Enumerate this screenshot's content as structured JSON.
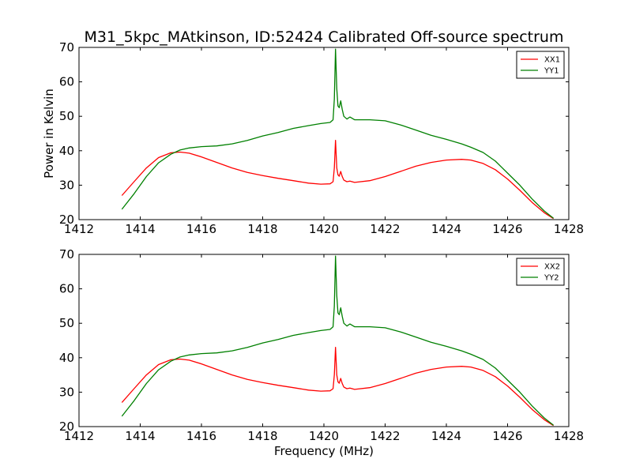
{
  "title": "M31_5kpc_MAtkinson, ID:52424 Calibrated Off-source spectrum",
  "colors": {
    "XX": "#ff0000",
    "YY": "#008000"
  },
  "chart_data": [
    {
      "type": "line",
      "ylabel": "Power in Kelvin",
      "xlabel": "",
      "xlim": [
        1412,
        1428
      ],
      "ylim": [
        20,
        70
      ],
      "xticks": [
        "1412",
        "1414",
        "1416",
        "1418",
        "1420",
        "1422",
        "1424",
        "1426",
        "1428"
      ],
      "yticks": [
        "20",
        "30",
        "40",
        "50",
        "60",
        "70"
      ],
      "legend_position": "top-right",
      "series": [
        {
          "name": "XX1",
          "color": "#ff0000",
          "x": [
            1413.4,
            1413.8,
            1414.2,
            1414.6,
            1415.0,
            1415.3,
            1415.6,
            1416.0,
            1416.5,
            1417.0,
            1417.5,
            1418.0,
            1418.5,
            1419.0,
            1419.5,
            1419.9,
            1420.2,
            1420.3,
            1420.34,
            1420.38,
            1420.42,
            1420.46,
            1420.5,
            1420.55,
            1420.6,
            1420.65,
            1420.75,
            1420.85,
            1421.0,
            1421.5,
            1422.0,
            1422.5,
            1423.0,
            1423.5,
            1424.0,
            1424.5,
            1424.8,
            1425.2,
            1425.6,
            1426.0,
            1426.4,
            1426.8,
            1427.2,
            1427.5
          ],
          "values": [
            27.0,
            31.0,
            35.0,
            38.0,
            39.4,
            39.6,
            39.3,
            38.2,
            36.6,
            35.0,
            33.7,
            32.8,
            32.0,
            31.3,
            30.6,
            30.3,
            30.4,
            31.0,
            35.0,
            43.0,
            35.0,
            33.0,
            32.6,
            34.0,
            32.5,
            31.5,
            31.0,
            31.2,
            30.8,
            31.3,
            32.5,
            34.0,
            35.5,
            36.6,
            37.3,
            37.5,
            37.3,
            36.3,
            34.5,
            31.8,
            28.5,
            25.0,
            22.0,
            20.3
          ]
        },
        {
          "name": "YY1",
          "color": "#008000",
          "x": [
            1413.4,
            1413.8,
            1414.2,
            1414.6,
            1415.0,
            1415.3,
            1415.6,
            1416.0,
            1416.5,
            1417.0,
            1417.5,
            1418.0,
            1418.5,
            1419.0,
            1419.5,
            1419.9,
            1420.2,
            1420.3,
            1420.34,
            1420.38,
            1420.42,
            1420.46,
            1420.5,
            1420.55,
            1420.6,
            1420.65,
            1420.75,
            1420.85,
            1421.0,
            1421.5,
            1422.0,
            1422.5,
            1423.0,
            1423.5,
            1424.0,
            1424.5,
            1424.8,
            1425.2,
            1425.6,
            1426.0,
            1426.4,
            1426.8,
            1427.2,
            1427.5
          ],
          "values": [
            23.0,
            27.5,
            32.5,
            36.5,
            39.0,
            40.2,
            40.8,
            41.2,
            41.4,
            42.0,
            43.0,
            44.3,
            45.3,
            46.5,
            47.3,
            47.9,
            48.2,
            49.0,
            55.0,
            69.5,
            58.0,
            53.0,
            52.5,
            54.5,
            52.0,
            50.0,
            49.2,
            49.8,
            49.0,
            49.0,
            48.7,
            47.5,
            46.0,
            44.5,
            43.3,
            42.0,
            41.0,
            39.5,
            37.0,
            33.5,
            30.0,
            26.0,
            22.5,
            20.4
          ]
        }
      ]
    },
    {
      "type": "line",
      "ylabel": "",
      "xlabel": "Frequency (MHz)",
      "xlim": [
        1412,
        1428
      ],
      "ylim": [
        20,
        70
      ],
      "xticks": [
        "1412",
        "1414",
        "1416",
        "1418",
        "1420",
        "1422",
        "1424",
        "1426",
        "1428"
      ],
      "yticks": [
        "20",
        "30",
        "40",
        "50",
        "60",
        "70"
      ],
      "legend_position": "top-right",
      "series": [
        {
          "name": "XX2",
          "color": "#ff0000",
          "x": [
            1413.4,
            1413.8,
            1414.2,
            1414.6,
            1415.0,
            1415.3,
            1415.6,
            1416.0,
            1416.5,
            1417.0,
            1417.5,
            1418.0,
            1418.5,
            1419.0,
            1419.5,
            1419.9,
            1420.2,
            1420.3,
            1420.34,
            1420.38,
            1420.42,
            1420.46,
            1420.5,
            1420.55,
            1420.6,
            1420.65,
            1420.75,
            1420.85,
            1421.0,
            1421.5,
            1422.0,
            1422.5,
            1423.0,
            1423.5,
            1424.0,
            1424.5,
            1424.8,
            1425.2,
            1425.6,
            1426.0,
            1426.4,
            1426.8,
            1427.2,
            1427.5
          ],
          "values": [
            27.0,
            31.0,
            35.0,
            38.0,
            39.4,
            39.6,
            39.3,
            38.2,
            36.6,
            35.0,
            33.7,
            32.8,
            32.0,
            31.3,
            30.6,
            30.3,
            30.4,
            31.0,
            35.0,
            43.0,
            35.0,
            33.0,
            32.6,
            34.0,
            32.5,
            31.5,
            31.0,
            31.2,
            30.8,
            31.3,
            32.5,
            34.0,
            35.5,
            36.6,
            37.3,
            37.5,
            37.3,
            36.3,
            34.5,
            31.8,
            28.5,
            25.0,
            22.0,
            20.3
          ]
        },
        {
          "name": "YY2",
          "color": "#008000",
          "x": [
            1413.4,
            1413.8,
            1414.2,
            1414.6,
            1415.0,
            1415.3,
            1415.6,
            1416.0,
            1416.5,
            1417.0,
            1417.5,
            1418.0,
            1418.5,
            1419.0,
            1419.5,
            1419.9,
            1420.2,
            1420.3,
            1420.34,
            1420.38,
            1420.42,
            1420.46,
            1420.5,
            1420.55,
            1420.6,
            1420.65,
            1420.75,
            1420.85,
            1421.0,
            1421.5,
            1422.0,
            1422.5,
            1423.0,
            1423.5,
            1424.0,
            1424.5,
            1424.8,
            1425.2,
            1425.6,
            1426.0,
            1426.4,
            1426.8,
            1427.2,
            1427.5
          ],
          "values": [
            23.0,
            27.5,
            32.5,
            36.5,
            39.0,
            40.2,
            40.8,
            41.2,
            41.4,
            42.0,
            43.0,
            44.3,
            45.3,
            46.5,
            47.3,
            47.9,
            48.2,
            49.0,
            55.0,
            69.5,
            58.0,
            53.0,
            52.5,
            54.5,
            52.0,
            50.0,
            49.2,
            49.8,
            49.0,
            49.0,
            48.7,
            47.5,
            46.0,
            44.5,
            43.3,
            42.0,
            41.0,
            39.5,
            37.0,
            33.5,
            30.0,
            26.0,
            22.5,
            20.4
          ]
        }
      ]
    }
  ]
}
